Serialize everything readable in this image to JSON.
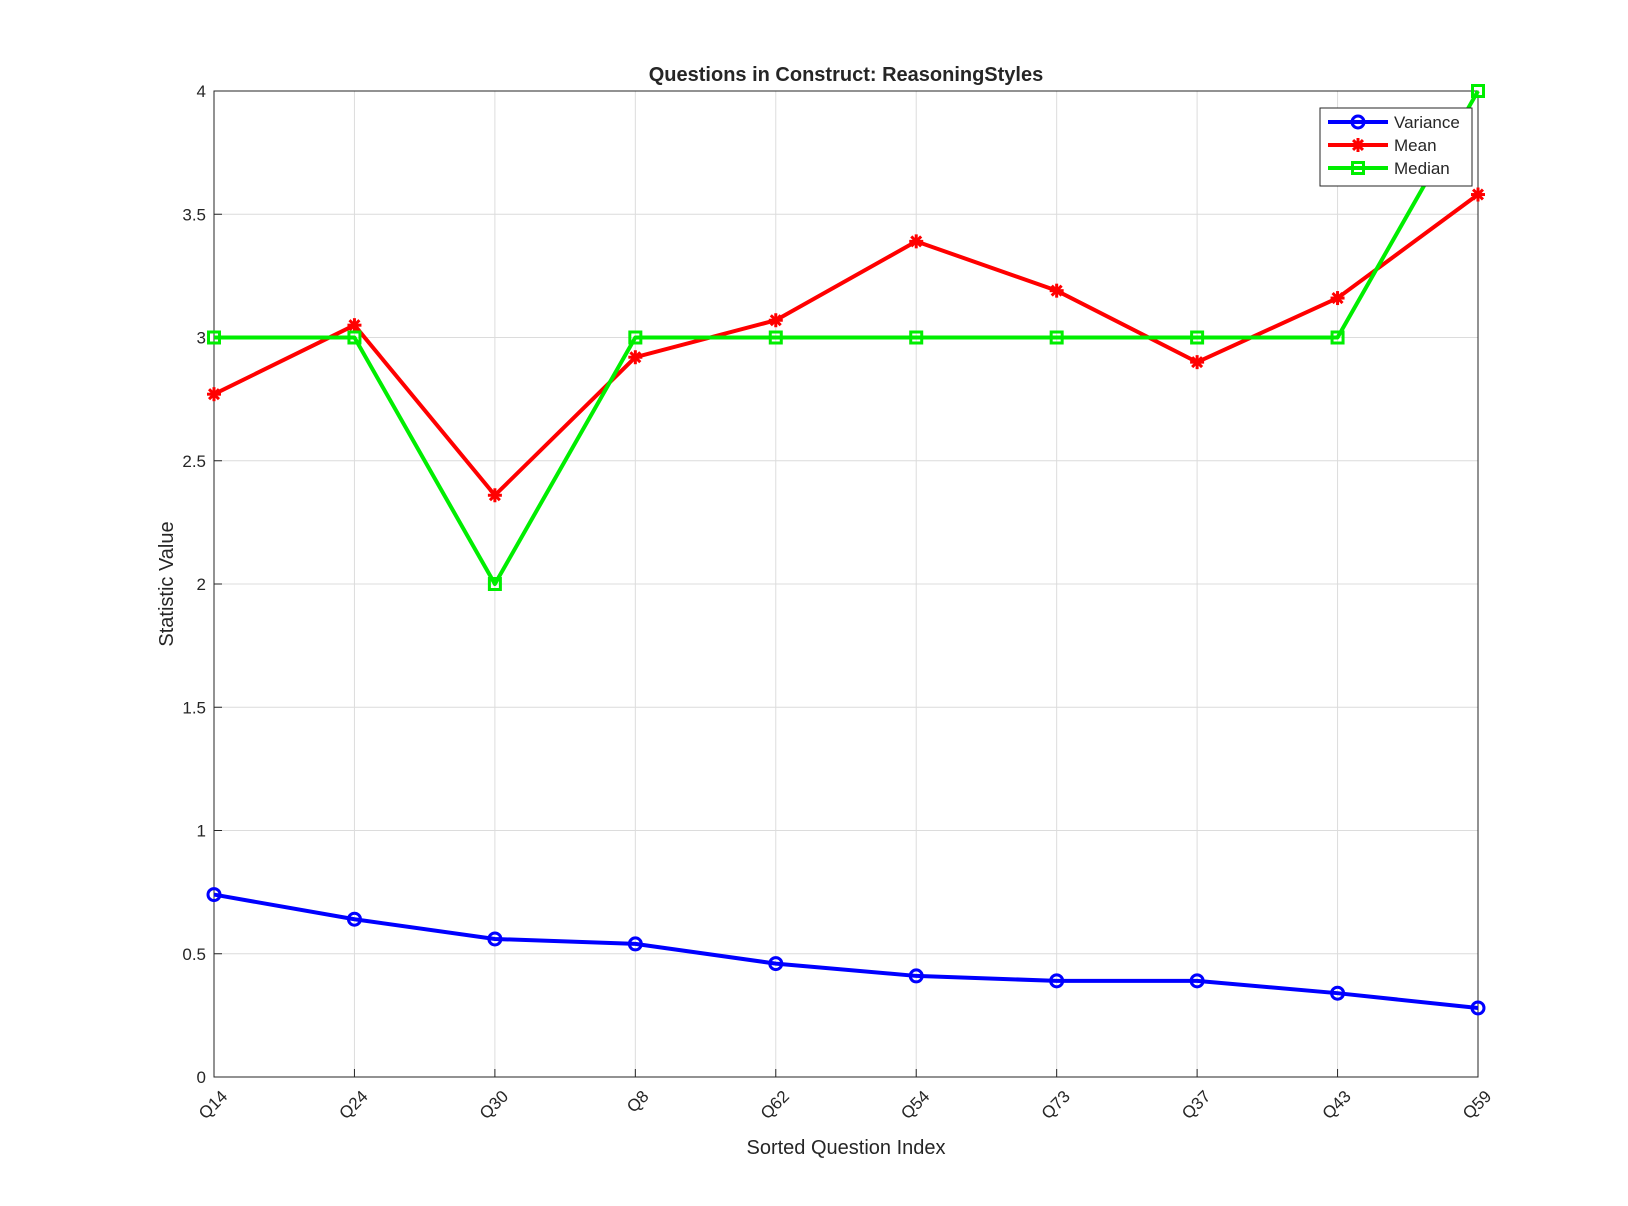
{
  "chart_data": {
    "type": "line",
    "title": "Questions in Construct: ReasoningStyles",
    "xlabel": "Sorted Question Index",
    "ylabel": "Statistic Value",
    "categories": [
      "Q14",
      "Q24",
      "Q30",
      "Q8",
      "Q62",
      "Q54",
      "Q73",
      "Q37",
      "Q43",
      "Q59"
    ],
    "ylim": [
      0,
      4
    ],
    "yticks": [
      "0",
      "0.5",
      "1",
      "1.5",
      "2",
      "2.5",
      "3",
      "3.5",
      "4"
    ],
    "grid": true,
    "legend_position": "top-right",
    "series": [
      {
        "name": "Variance",
        "color": "#0000ff",
        "marker": "circle",
        "values": [
          0.74,
          0.64,
          0.56,
          0.54,
          0.46,
          0.41,
          0.39,
          0.39,
          0.34,
          0.28
        ]
      },
      {
        "name": "Mean",
        "color": "#ff0000",
        "marker": "star",
        "values": [
          2.77,
          3.05,
          2.36,
          2.92,
          3.07,
          3.39,
          3.19,
          2.9,
          3.16,
          3.58
        ]
      },
      {
        "name": "Median",
        "color": "#00ee00",
        "marker": "square",
        "values": [
          3,
          3,
          2,
          3,
          3,
          3,
          3,
          3,
          3,
          4
        ]
      }
    ]
  }
}
